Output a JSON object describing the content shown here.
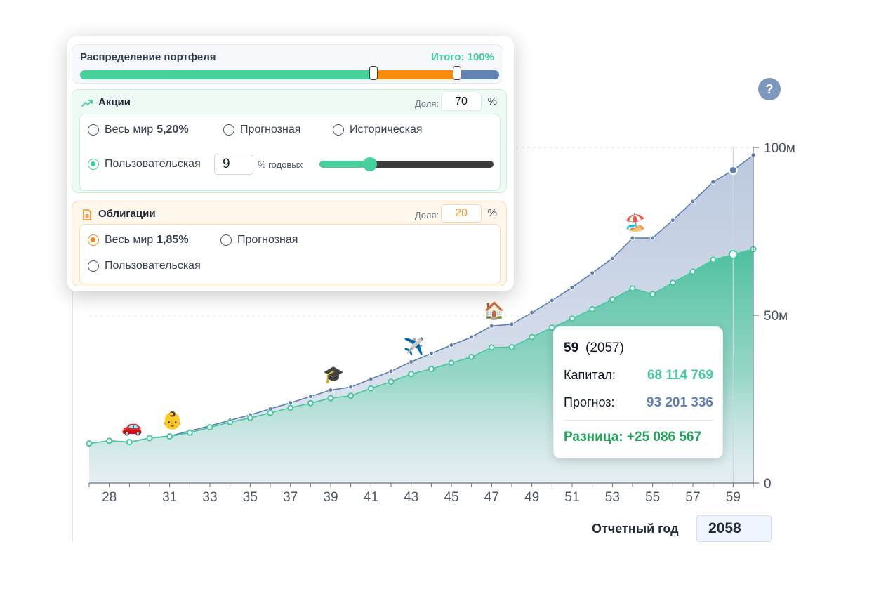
{
  "allocation": {
    "title": "Распределение портфеля",
    "total": "Итого: 100%",
    "stocks_share": 70,
    "bonds_share": 20,
    "other_share": 10,
    "colors": {
      "stocks": "#47d29c",
      "bonds": "#f78c0f",
      "other": "#5f83b3"
    }
  },
  "stocks": {
    "title": "Акции",
    "share_label": "Доля:",
    "share_value": "70",
    "pct": "%",
    "options": {
      "world": {
        "label": "Весь мир",
        "rate": "5,20%"
      },
      "forecast": {
        "label": "Прогнозная"
      },
      "historical": {
        "label": "Историческая"
      },
      "custom": {
        "label": "Пользовательская"
      }
    },
    "selected": "custom",
    "custom_value": "9",
    "per_year": "% годовых",
    "slider_fraction": 0.29
  },
  "bonds": {
    "title": "Облигации",
    "share_label": "Доля:",
    "share_value": "20",
    "pct": "%",
    "options": {
      "world": {
        "label": "Весь мир",
        "rate": "1,85%"
      },
      "forecast": {
        "label": "Прогнозная"
      },
      "custom": {
        "label": "Пользовательская"
      }
    },
    "selected": "world"
  },
  "help": {
    "label": "?"
  },
  "tooltip": {
    "age": "59",
    "year": "(2057)",
    "capital_label": "Капитал:",
    "capital_value": "68 114 769",
    "forecast_label": "Прогноз:",
    "forecast_value": "93 201 336",
    "diff": "Разница: +25 086 567"
  },
  "report": {
    "label": "Отчетный год",
    "value": "2058"
  },
  "chart_data": {
    "type": "area",
    "x": [
      27,
      28,
      29,
      30,
      31,
      32,
      33,
      34,
      35,
      36,
      37,
      38,
      39,
      40,
      41,
      42,
      43,
      44,
      45,
      46,
      47,
      48,
      49,
      50,
      51,
      52,
      53,
      54,
      55,
      56,
      57,
      58,
      59,
      60
    ],
    "x_tick_labels": [
      "28",
      "31",
      "33",
      "35",
      "37",
      "39",
      "41",
      "43",
      "45",
      "47",
      "49",
      "51",
      "53",
      "55",
      "57",
      "59"
    ],
    "x_ticks": [
      28,
      31,
      33,
      35,
      37,
      39,
      41,
      43,
      45,
      47,
      49,
      51,
      53,
      55,
      57,
      59
    ],
    "y_tick_labels": [
      "100м",
      "50м",
      "0"
    ],
    "y_ticks": [
      100,
      50,
      0
    ],
    "ylim": [
      0,
      100
    ],
    "xlim": [
      27,
      60
    ],
    "y_units": "millions",
    "grid": "dashed horizontal at 50 and 100",
    "series": [
      {
        "key": "forecast",
        "color": "#5f7fb0",
        "fill": "#c8d3e4",
        "values": [
          11.8,
          12.6,
          12.2,
          13.4,
          14.0,
          15.5,
          17.0,
          18.7,
          20.3,
          22.1,
          23.9,
          25.8,
          27.7,
          28.6,
          31.0,
          33.3,
          36.1,
          38.6,
          41.1,
          43.5,
          46.8,
          47.3,
          50.8,
          54.4,
          58.3,
          62.6,
          66.9,
          73.0,
          73.0,
          78.3,
          83.9,
          89.7,
          93.2,
          97.7
        ]
      },
      {
        "key": "capital",
        "color": "#47c99e",
        "fill": "#5fc9a7",
        "values": [
          11.8,
          12.6,
          12.2,
          13.4,
          13.9,
          15.0,
          16.6,
          18.1,
          19.4,
          20.9,
          22.4,
          23.8,
          25.3,
          26.0,
          28.2,
          30.2,
          32.5,
          34.0,
          35.8,
          37.6,
          40.4,
          40.5,
          43.5,
          46.3,
          49.0,
          51.8,
          54.7,
          58.0,
          56.3,
          59.7,
          63.0,
          66.5,
          68.1,
          69.7
        ]
      }
    ],
    "highlight_x": 59,
    "events": [
      {
        "x": 29,
        "icon": "car-icon",
        "emoji": "🚗"
      },
      {
        "x": 31,
        "icon": "baby-icon",
        "emoji": "👶"
      },
      {
        "x": 39,
        "icon": "graduation-cap-icon",
        "emoji": "🎓"
      },
      {
        "x": 43,
        "icon": "airplane-icon",
        "emoji": "✈️"
      },
      {
        "x": 47,
        "icon": "house-icon",
        "emoji": "🏠"
      },
      {
        "x": 54,
        "icon": "beach-icon",
        "emoji": "🏖️"
      }
    ]
  }
}
